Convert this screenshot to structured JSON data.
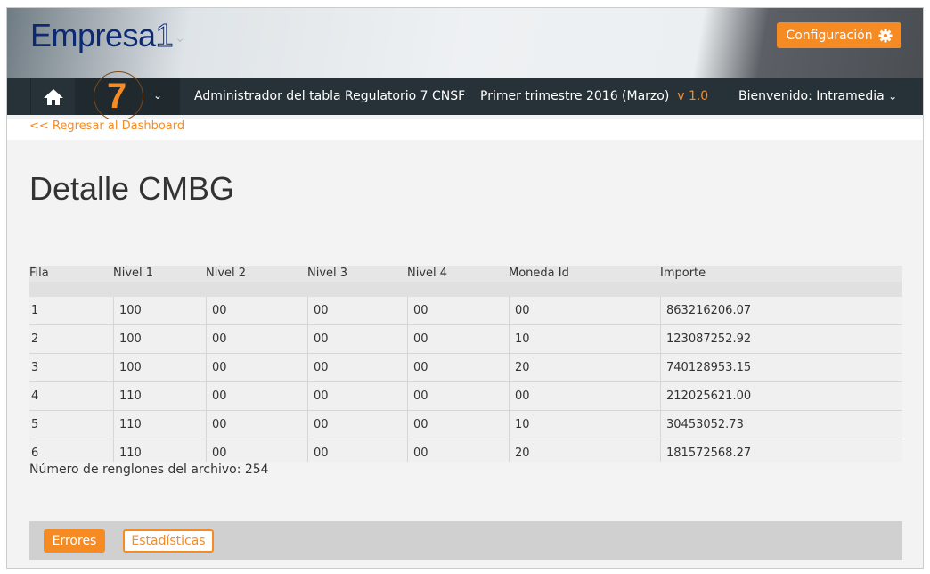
{
  "header": {
    "logo_text": "Empresa",
    "logo_digit": "1",
    "config_label": "Configuración"
  },
  "nav": {
    "module_number": "7",
    "title": "Administrador del tabla Regulatorio 7 CNSF",
    "period": "Primer trimestre 2016 (Marzo)",
    "version": "v 1.0",
    "welcome_prefix": "Bienvenido:",
    "user": "Intramedia"
  },
  "back_link": "<< Regresar al Dashboard",
  "page_title": "Detalle CMBG",
  "table": {
    "columns": [
      "Fila",
      "Nivel 1",
      "Nivel 2",
      "Nivel 3",
      "Nivel 4",
      "Moneda Id",
      "Importe"
    ],
    "rows": [
      [
        "1",
        "100",
        "00",
        "00",
        "00",
        "00",
        "863216206.07"
      ],
      [
        "2",
        "100",
        "00",
        "00",
        "00",
        "10",
        "123087252.92"
      ],
      [
        "3",
        "100",
        "00",
        "00",
        "00",
        "20",
        "740128953.15"
      ],
      [
        "4",
        "110",
        "00",
        "00",
        "00",
        "00",
        "212025621.00"
      ],
      [
        "5",
        "110",
        "00",
        "00",
        "00",
        "10",
        "30453052.73"
      ],
      [
        "6",
        "110",
        "00",
        "00",
        "00",
        "20",
        "181572568.27"
      ]
    ]
  },
  "row_count_text": "Número de renglones del archivo: 254",
  "footer": {
    "errors_label": "Errores",
    "stats_label": "Estadísticas"
  },
  "colors": {
    "accent": "#f68b24",
    "nav_bg": "#263238",
    "logo": "#0c2a74"
  }
}
